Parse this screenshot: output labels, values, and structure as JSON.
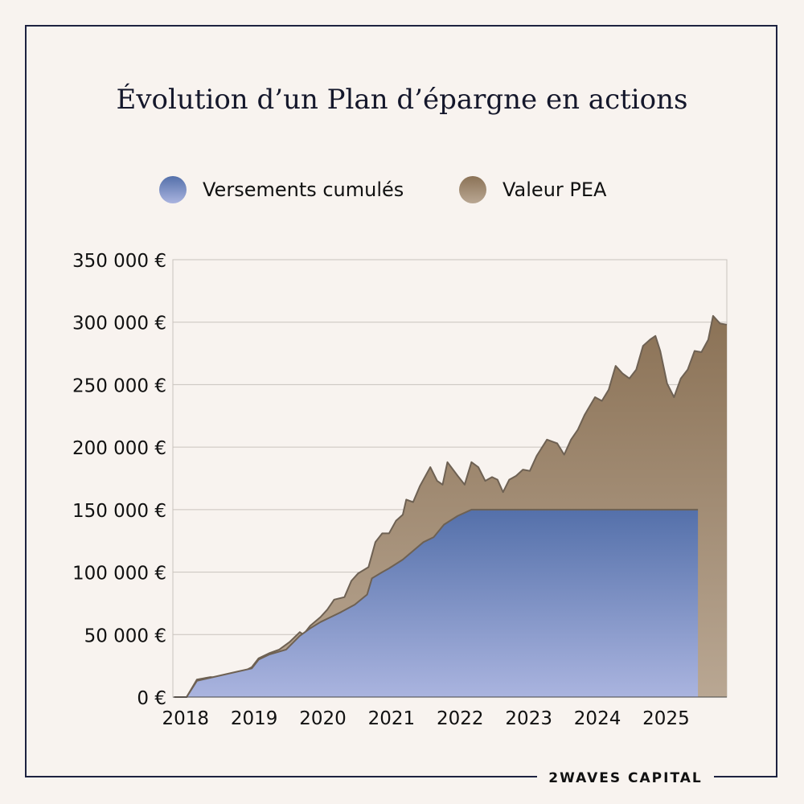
{
  "chart_data": {
    "type": "area",
    "title": "Évolution d’un Plan d’épargne en actions",
    "legend_position": "top-center",
    "grid": true,
    "series": [
      {
        "name": "Versements cumulés",
        "color_top": "#5470aa",
        "color_bottom": "#aab4df",
        "points": [
          [
            2017.87,
            0
          ],
          [
            2018.05,
            0
          ],
          [
            2018.2,
            13000
          ],
          [
            2018.4,
            15500
          ],
          [
            2018.6,
            18000
          ],
          [
            2018.8,
            20500
          ],
          [
            2019.0,
            23000
          ],
          [
            2019.1,
            30000
          ],
          [
            2019.25,
            34000
          ],
          [
            2019.5,
            38000
          ],
          [
            2019.7,
            49000
          ],
          [
            2019.85,
            55000
          ],
          [
            2020.0,
            60000
          ],
          [
            2020.15,
            64000
          ],
          [
            2020.3,
            68000
          ],
          [
            2020.5,
            74000
          ],
          [
            2020.68,
            82000
          ],
          [
            2020.75,
            95000
          ],
          [
            2020.9,
            100000
          ],
          [
            2021.0,
            103000
          ],
          [
            2021.2,
            110000
          ],
          [
            2021.35,
            117000
          ],
          [
            2021.5,
            124000
          ],
          [
            2021.65,
            128000
          ],
          [
            2021.8,
            138000
          ],
          [
            2022.0,
            145000
          ],
          [
            2022.2,
            150000
          ],
          [
            2025.5,
            150000
          ]
        ]
      },
      {
        "name": "Valeur PEA",
        "color_top": "#8b7256",
        "color_bottom": "#b9a793",
        "points": [
          [
            2017.87,
            0
          ],
          [
            2018.05,
            0
          ],
          [
            2018.2,
            14000
          ],
          [
            2018.4,
            16000
          ],
          [
            2018.5,
            15500
          ],
          [
            2018.7,
            19000
          ],
          [
            2018.9,
            21000
          ],
          [
            2019.0,
            24000
          ],
          [
            2019.1,
            31000
          ],
          [
            2019.25,
            35000
          ],
          [
            2019.4,
            38000
          ],
          [
            2019.55,
            44000
          ],
          [
            2019.7,
            52000
          ],
          [
            2019.75,
            50000
          ],
          [
            2019.85,
            57000
          ],
          [
            2020.0,
            64000
          ],
          [
            2020.1,
            70000
          ],
          [
            2020.2,
            78000
          ],
          [
            2020.35,
            80000
          ],
          [
            2020.45,
            93000
          ],
          [
            2020.55,
            99000
          ],
          [
            2020.7,
            104000
          ],
          [
            2020.8,
            124000
          ],
          [
            2020.9,
            131000
          ],
          [
            2021.0,
            131000
          ],
          [
            2021.1,
            141000
          ],
          [
            2021.2,
            146000
          ],
          [
            2021.25,
            158000
          ],
          [
            2021.35,
            156000
          ],
          [
            2021.45,
            169000
          ],
          [
            2021.6,
            184000
          ],
          [
            2021.7,
            173000
          ],
          [
            2021.78,
            170000
          ],
          [
            2021.85,
            188000
          ],
          [
            2022.0,
            177000
          ],
          [
            2022.1,
            170000
          ],
          [
            2022.2,
            188000
          ],
          [
            2022.3,
            184000
          ],
          [
            2022.4,
            173000
          ],
          [
            2022.5,
            176000
          ],
          [
            2022.58,
            174000
          ],
          [
            2022.66,
            164000
          ],
          [
            2022.75,
            174000
          ],
          [
            2022.85,
            177000
          ],
          [
            2022.95,
            182000
          ],
          [
            2023.05,
            181000
          ],
          [
            2023.15,
            193000
          ],
          [
            2023.3,
            206000
          ],
          [
            2023.45,
            203000
          ],
          [
            2023.55,
            194000
          ],
          [
            2023.65,
            206000
          ],
          [
            2023.75,
            214000
          ],
          [
            2023.85,
            226000
          ],
          [
            2024.0,
            240000
          ],
          [
            2024.1,
            237000
          ],
          [
            2024.2,
            246000
          ],
          [
            2024.3,
            265000
          ],
          [
            2024.4,
            259000
          ],
          [
            2024.5,
            255000
          ],
          [
            2024.6,
            262000
          ],
          [
            2024.7,
            281000
          ],
          [
            2024.8,
            286000
          ],
          [
            2024.88,
            289000
          ],
          [
            2024.95,
            277000
          ],
          [
            2025.05,
            251000
          ],
          [
            2025.15,
            240000
          ],
          [
            2025.25,
            255000
          ],
          [
            2025.35,
            262000
          ],
          [
            2025.45,
            277000
          ],
          [
            2025.55,
            276000
          ],
          [
            2025.65,
            286000
          ],
          [
            2025.72,
            305000
          ],
          [
            2025.82,
            299000
          ],
          [
            2025.92,
            298000
          ]
        ]
      }
    ],
    "y_ticks": [
      "350 000 €",
      "300 000 €",
      "250 000 €",
      "200 000 €",
      "150 000 €",
      "100 000 €",
      "50 000 €",
      "0 €"
    ],
    "y_tick_values": [
      350000,
      300000,
      250000,
      200000,
      150000,
      100000,
      50000,
      0
    ],
    "x_ticks": [
      "2018",
      "2019",
      "2020",
      "2021",
      "2022",
      "2023",
      "2024",
      "2025"
    ],
    "x_tick_values": [
      2018,
      2019,
      2020,
      2021,
      2022,
      2023,
      2024,
      2025
    ],
    "xlim": [
      2017.85,
      2025.92
    ],
    "ylim": [
      0,
      350000
    ]
  },
  "footer": {
    "brand": "2WAVES CAPITAL"
  }
}
